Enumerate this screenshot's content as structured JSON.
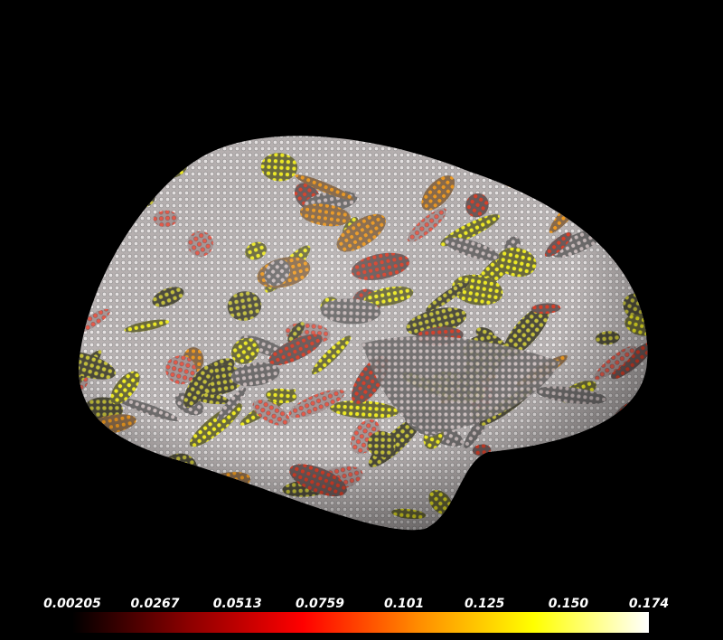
{
  "colorbar": {
    "range": [
      0.00205,
      0.174
    ],
    "ticks": [
      0.00205,
      0.0267,
      0.0513,
      0.0759,
      0.101,
      0.125,
      {
        "value": 0.15,
        "label": "0.150"
      },
      0.174
    ],
    "colors": [
      "#000000",
      "#8b0000",
      "#ff0000",
      "#ff8c00",
      "#ffff00",
      "#ffffff"
    ]
  }
}
